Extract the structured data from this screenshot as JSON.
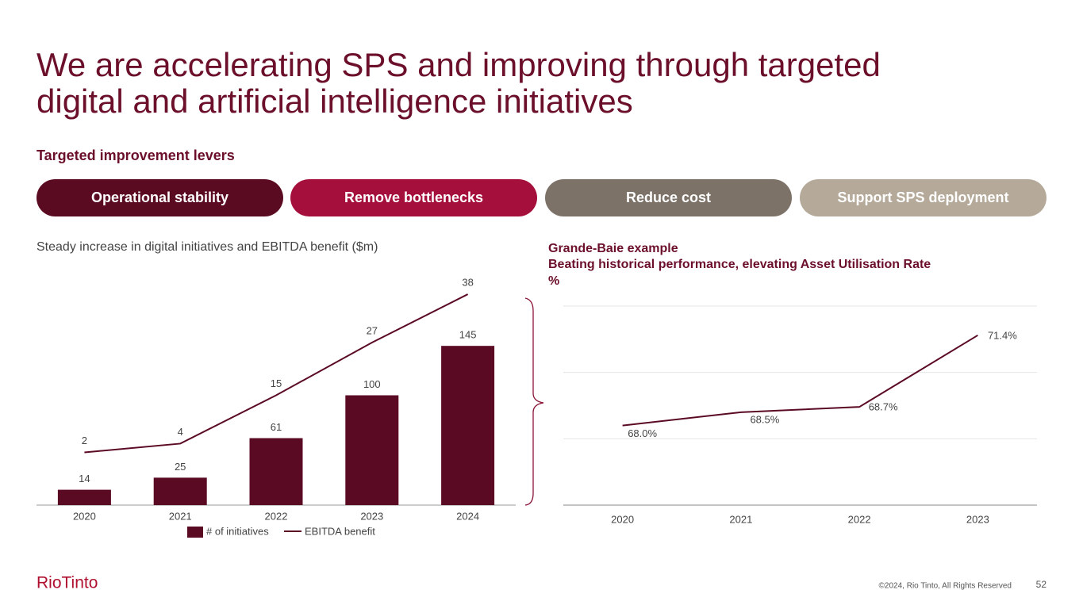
{
  "header": {
    "title": [
      "We are accelerating SPS and improving through targeted",
      "digital and artificial intelligence initiatives"
    ]
  },
  "levers": {
    "title": "Targeted improvement levers",
    "items": [
      {
        "label": "Operational stability",
        "color": "#5a0b22"
      },
      {
        "label": "Remove bottlenecks",
        "color": "#a50f3c"
      },
      {
        "label": "Reduce cost",
        "color": "#7d7268"
      },
      {
        "label": "Support SPS deployment",
        "color": "#b5aa9a"
      }
    ]
  },
  "chart_data": [
    {
      "type": "bar",
      "title": "Steady increase in digital initiatives and EBITDA benefit ($m)",
      "categories": [
        "2020",
        "2021",
        "2022",
        "2023",
        "2024"
      ],
      "series": [
        {
          "name": "# of initiatives",
          "type": "bar",
          "color": "#5b0a23",
          "values": [
            14,
            25,
            61,
            100,
            145
          ]
        },
        {
          "name": "EBITDA benefit",
          "type": "line",
          "axis": "y2",
          "color": "#5b0a23",
          "values": [
            2,
            4,
            15,
            27,
            38
          ]
        }
      ],
      "ylim": [
        0,
        200
      ],
      "y2lim": [
        -10,
        40
      ],
      "legend": "bottom"
    },
    {
      "type": "line",
      "title": [
        "Grande-Baie example",
        "Beating historical performance, elevating Asset Utilisation Rate"
      ],
      "ylabel": "%",
      "categories": [
        "2020",
        "2021",
        "2022",
        "2023"
      ],
      "series": [
        {
          "name": "Asset Utilisation Rate",
          "color": "#5b0a23",
          "values": [
            68.0,
            68.5,
            68.7,
            71.4
          ],
          "value_labels": [
            "68.0%",
            "68.5%",
            "68.7%",
            "71.4%"
          ]
        }
      ],
      "ylim": [
        65,
        72.5
      ],
      "yticks": [
        65,
        67.5,
        70,
        72.5
      ],
      "grid": true,
      "tick_labels": false
    }
  ],
  "footer": {
    "logo": "RioTinto",
    "copyright": "©2024, Rio Tinto, All Rights Reserved",
    "page": "52"
  }
}
